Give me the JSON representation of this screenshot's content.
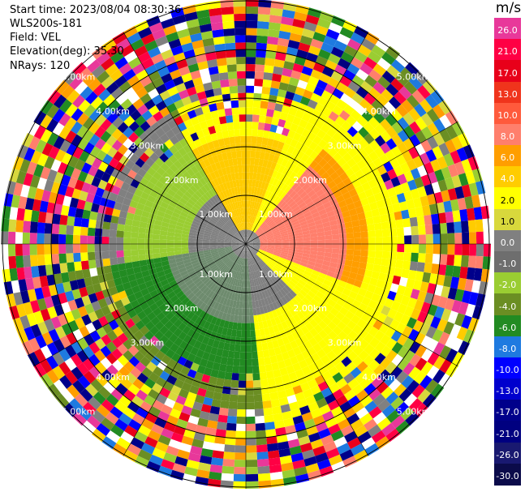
{
  "header": {
    "start_time": "Start time: 2023/08/04 08:30:36",
    "site": "WLS200s-181",
    "field": "Field: VEL",
    "elevation": "Elevation(deg): 35.30",
    "nrays": "NRays: 120"
  },
  "colorbar": {
    "unit": "m/s",
    "labels": [
      "26.0",
      "21.0",
      "17.0",
      "13.0",
      "10.0",
      "8.0",
      "6.0",
      "4.0",
      "2.0",
      "1.0",
      "0.0",
      "-1.0",
      "-2.0",
      "-4.0",
      "-6.0",
      "-8.0",
      "-10.0",
      "-13.0",
      "-17.0",
      "-21.0",
      "-26.0",
      "-30.0"
    ],
    "colors": [
      "#e8389a",
      "#ff0044",
      "#e8001a",
      "#f0341c",
      "#ff5a3c",
      "#ff7f6c",
      "#ff9e00",
      "#ffcc00",
      "#ffff00",
      "#d8d83c",
      "#808080",
      "#6e6e6e",
      "#9acd32",
      "#6b8e23",
      "#228b22",
      "#1e7ae0",
      "#0000ff",
      "#0000cd",
      "#00008b",
      "#000080",
      "#191970",
      "#0b0b4a"
    ]
  },
  "range_labels": [
    "1.00km",
    "2.00km",
    "3.00km",
    "4.00km",
    "5.00km",
    "1.00km",
    "2.00km",
    "3.00km",
    "4.00km",
    "5.00km",
    "1.00km",
    "2.00km",
    "3.00km",
    "4.00km",
    "5.00km",
    "1.00km",
    "2.00km",
    "3.00km",
    "4.00km",
    "5.00km"
  ]
}
